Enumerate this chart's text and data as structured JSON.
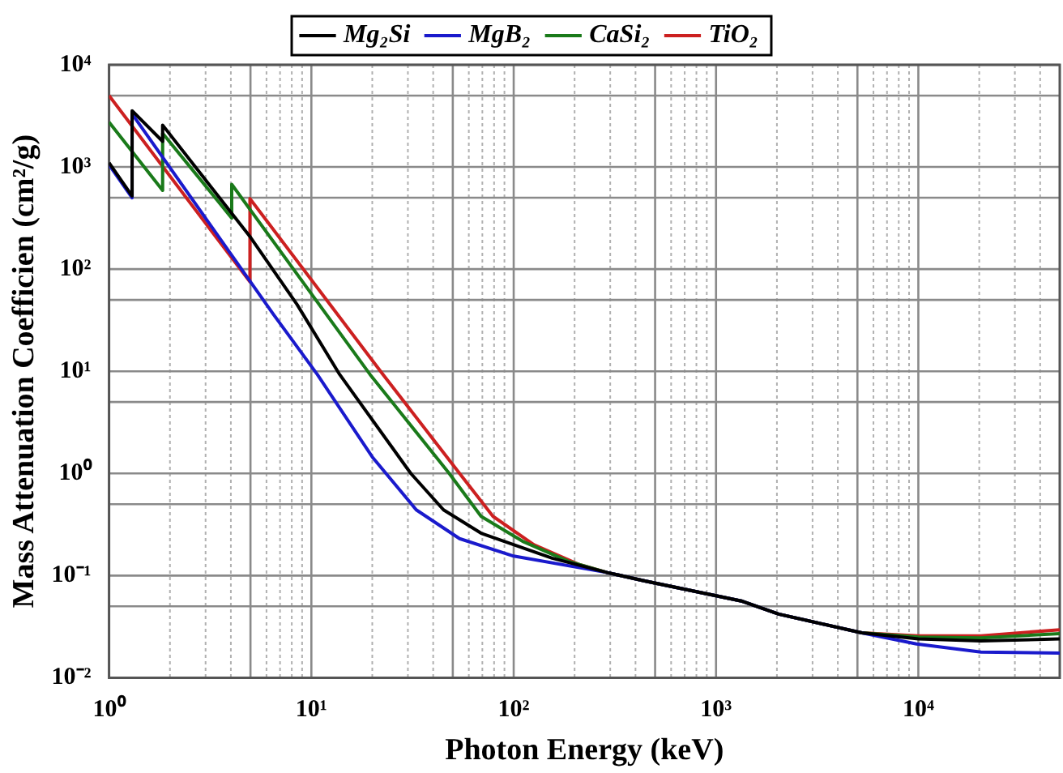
{
  "chart_data": {
    "type": "line",
    "xlabel": "Photon Energy (keV)",
    "ylabel": "Mass Attenuation Coefficien (cm²/g)",
    "log": "xy",
    "grid": true,
    "legend": "top",
    "marker": "none",
    "line_style": "solid",
    "xlim": [
      1,
      50000
    ],
    "ylim": [
      0.01,
      10000
    ],
    "xticks": [
      {
        "value": 1,
        "label": "10⁰"
      },
      {
        "value": 2,
        "label": null
      },
      {
        "value": 3,
        "label": null
      },
      {
        "value": 4,
        "label": null
      },
      {
        "value": 5,
        "label": null
      },
      {
        "value": 6,
        "label": null
      },
      {
        "value": 7,
        "label": null
      },
      {
        "value": 8,
        "label": null
      },
      {
        "value": 9,
        "label": null
      },
      {
        "value": 10,
        "label": "10¹"
      },
      {
        "value": 20,
        "label": null
      },
      {
        "value": 30,
        "label": null
      },
      {
        "value": 40,
        "label": null
      },
      {
        "value": 50,
        "label": null
      },
      {
        "value": 60,
        "label": null
      },
      {
        "value": 70,
        "label": null
      },
      {
        "value": 80,
        "label": null
      },
      {
        "value": 90,
        "label": null
      },
      {
        "value": 100,
        "label": "10²"
      },
      {
        "value": 200,
        "label": null
      },
      {
        "value": 300,
        "label": null
      },
      {
        "value": 400,
        "label": null
      },
      {
        "value": 500,
        "label": null
      },
      {
        "value": 600,
        "label": null
      },
      {
        "value": 700,
        "label": null
      },
      {
        "value": 800,
        "label": null
      },
      {
        "value": 900,
        "label": null
      },
      {
        "value": 1000,
        "label": "10³"
      },
      {
        "value": 2000,
        "label": null
      },
      {
        "value": 3000,
        "label": null
      },
      {
        "value": 4000,
        "label": null
      },
      {
        "value": 5000,
        "label": null
      },
      {
        "value": 6000,
        "label": null
      },
      {
        "value": 7000,
        "label": null
      },
      {
        "value": 8000,
        "label": null
      },
      {
        "value": 9000,
        "label": null
      },
      {
        "value": 10000,
        "label": "10⁴"
      },
      {
        "value": 20000,
        "label": null
      },
      {
        "value": 30000,
        "label": null
      },
      {
        "value": 40000,
        "label": null
      }
    ],
    "yticks": [
      {
        "value": 0.01,
        "label": "10⁻²"
      },
      {
        "value": 0.05,
        "label": null
      },
      {
        "value": 0.1,
        "label": "10⁻¹"
      },
      {
        "value": 0.5,
        "label": null
      },
      {
        "value": 1,
        "label": "10⁰"
      },
      {
        "value": 5,
        "label": null
      },
      {
        "value": 10,
        "label": "10¹"
      },
      {
        "value": 50,
        "label": null
      },
      {
        "value": 100,
        "label": "10²"
      },
      {
        "value": 500,
        "label": null
      },
      {
        "value": 1000,
        "label": "10³"
      },
      {
        "value": 5000,
        "label": null
      },
      {
        "value": 10000,
        "label": "10⁴"
      }
    ],
    "series": [
      {
        "name": "Mg₂Si",
        "color": "#000000",
        "x": [
          1,
          1.3,
          1.3,
          1.84,
          1.84,
          5,
          8.5,
          13.8,
          31,
          45,
          69,
          155,
          290,
          440,
          1350,
          2040,
          5250,
          10000,
          20400,
          50000
        ],
        "values": [
          1100,
          520,
          3550,
          1780,
          2570,
          205,
          45,
          9.3,
          1.0,
          0.44,
          0.26,
          0.148,
          0.107,
          0.089,
          0.056,
          0.042,
          0.0275,
          0.024,
          0.0229,
          0.024
        ]
      },
      {
        "name": "MgB₂",
        "color": "#1a1acc",
        "x": [
          1,
          1.3,
          1.3,
          6.5,
          10.7,
          20,
          33,
          54,
          100,
          290,
          440,
          1350,
          2040,
          5250,
          9800,
          20400,
          50000
        ],
        "values": [
          1050,
          500,
          3300,
          36,
          9.3,
          1.45,
          0.44,
          0.23,
          0.155,
          0.107,
          0.089,
          0.056,
          0.042,
          0.0275,
          0.0214,
          0.0178,
          0.0174
        ]
      },
      {
        "name": "CaSi₂",
        "color": "#1a7a1a",
        "x": [
          1,
          1.84,
          1.84,
          4.04,
          4.04,
          19.5,
          48,
          69,
          112,
          186,
          290,
          440,
          1350,
          2040,
          5250,
          10000,
          20400,
          50000
        ],
        "values": [
          2750,
          590,
          2140,
          316,
          676,
          9.3,
          1.0,
          0.38,
          0.214,
          0.138,
          0.107,
          0.089,
          0.056,
          0.042,
          0.0275,
          0.025,
          0.0245,
          0.027
        ]
      },
      {
        "name": "TiO₂",
        "color": "#cc2020",
        "x": [
          1,
          4.97,
          4.97,
          22.6,
          54,
          79,
          126,
          209,
          290,
          440,
          1350,
          2040,
          5250,
          10000,
          20400,
          50000
        ],
        "values": [
          5000,
          75,
          490,
          9.3,
          1.0,
          0.38,
          0.2,
          0.129,
          0.107,
          0.089,
          0.056,
          0.042,
          0.0275,
          0.0257,
          0.0257,
          0.0295
        ]
      }
    ]
  }
}
